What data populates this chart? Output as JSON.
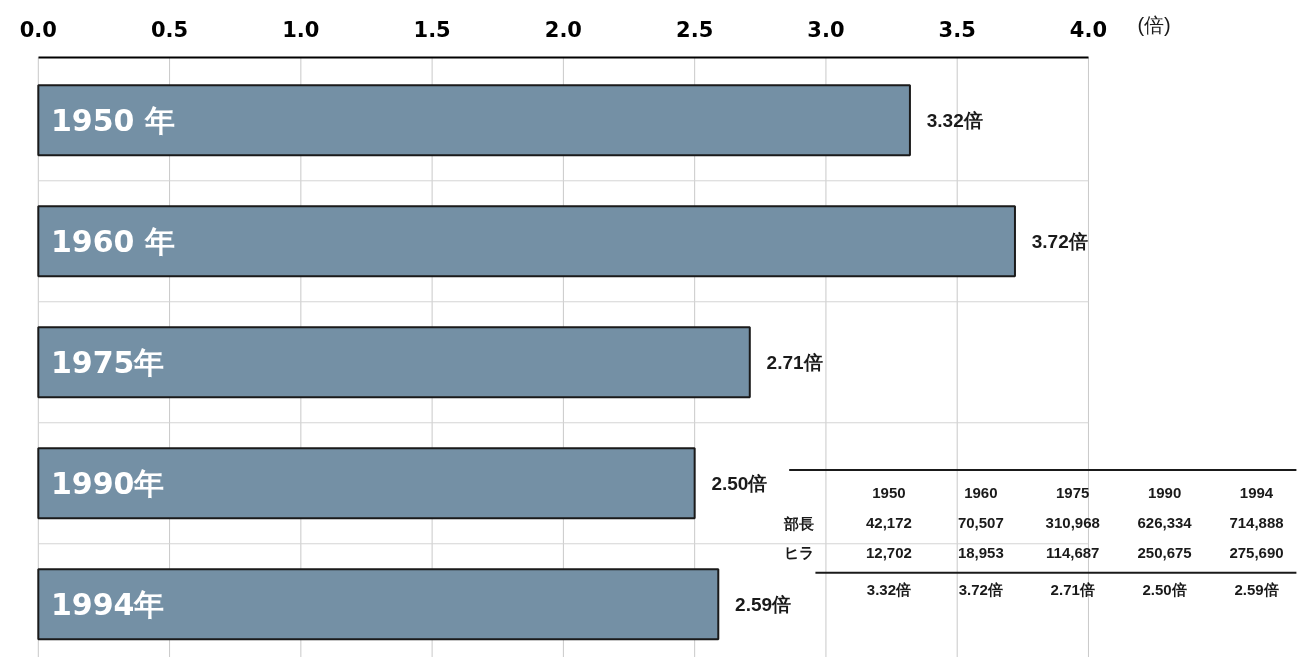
{
  "chart_data": {
    "type": "bar",
    "orientation": "horizontal",
    "xlabel": "(倍)",
    "categories": [
      "1950 年",
      "1960 年",
      "1975年",
      "1990年",
      "1994年"
    ],
    "values": [
      3.32,
      3.72,
      2.71,
      2.5,
      2.59
    ],
    "value_labels": [
      "3.32倍",
      "3.72倍",
      "2.71倍",
      "2.50倍",
      "2.59倍"
    ],
    "color": "#7490a5",
    "xlim": [
      0,
      4
    ],
    "xticks": [
      {
        "value": 0,
        "label": "0.0"
      },
      0.5,
      {
        "value": 1,
        "label": "1.0"
      },
      1.5,
      {
        "value": 2,
        "label": "2.0"
      },
      2.5,
      {
        "value": 3,
        "label": "3.0"
      },
      3.5,
      {
        "value": 4,
        "label": "4.0"
      }
    ],
    "grid": true,
    "annotations": [
      "1950",
      "1960",
      "1975",
      "1990",
      "1994",
      "部長",
      "42,172",
      "70,507",
      "310,968",
      "626,334",
      "714,888",
      "ヒラ",
      "12,702",
      "18,953",
      "114,687",
      "250,675",
      "275,690"
    ]
  }
}
